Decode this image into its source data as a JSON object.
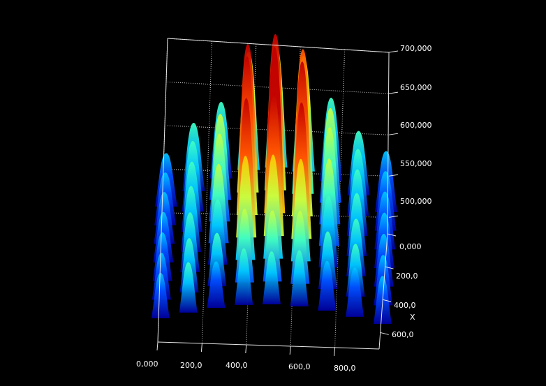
{
  "chart_data": {
    "type": "surface",
    "title": "",
    "z_axis": {
      "ticks": [
        "700,000",
        "650,000",
        "600,000",
        "550,000",
        "500,000"
      ],
      "values": [
        700,
        650,
        600,
        550,
        500
      ],
      "range": [
        480,
        700
      ]
    },
    "y_axis": {
      "label": "",
      "ticks": [
        "0,000",
        "200,0",
        "400,0",
        "600,0"
      ],
      "values": [
        0,
        200,
        400,
        600
      ],
      "range": [
        0,
        700
      ]
    },
    "x_axis": {
      "label": "X",
      "ticks": [
        "0,000",
        "200,0",
        "400,0",
        "600,0",
        "800,0"
      ],
      "values": [
        0,
        200,
        400,
        600,
        800
      ],
      "range": [
        0,
        1000
      ]
    },
    "grid": true,
    "colormap": [
      "#0000a0",
      "#0050ff",
      "#00c8ff",
      "#40ffc0",
      "#c8ff40",
      "#ffc800",
      "#ff5000",
      "#c00000"
    ],
    "background": "#000000",
    "peak_grid_summary": {
      "description_note": "",
      "rows": 7,
      "cols": 9
    }
  }
}
